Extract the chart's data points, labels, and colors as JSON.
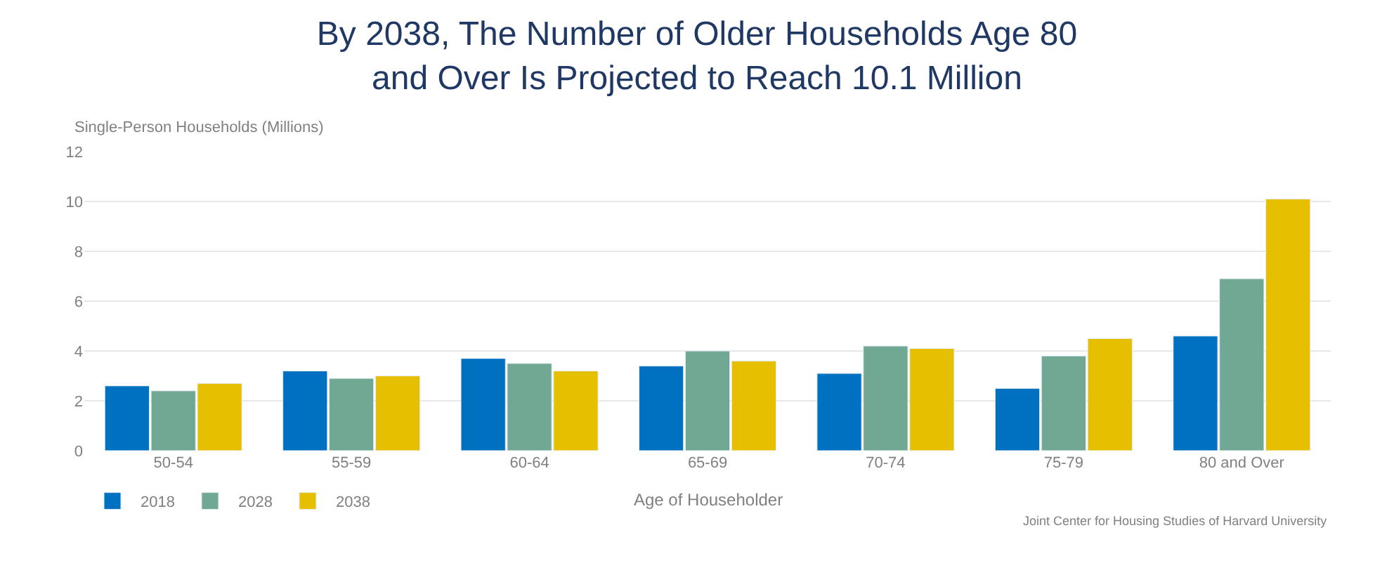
{
  "chart_data": {
    "type": "bar",
    "title": "By 2038, The Number of Older Households Age 80\nand Over Is Projected to Reach 10.1 Million",
    "ylabel": "Single-Person Households (Millions)",
    "xlabel": "Age of Householder",
    "categories": [
      "50-54",
      "55-59",
      "60-64",
      "65-69",
      "70-74",
      "75-79",
      "80 and Over"
    ],
    "series": [
      {
        "name": "2018",
        "color": "#0070c0",
        "values": [
          2.6,
          3.2,
          3.7,
          3.4,
          3.1,
          2.5,
          4.6
        ]
      },
      {
        "name": "2028",
        "color": "#70a894",
        "values": [
          2.4,
          2.9,
          3.5,
          4.0,
          4.2,
          3.8,
          6.9
        ]
      },
      {
        "name": "2038",
        "color": "#e6bf00",
        "values": [
          2.7,
          3.0,
          3.2,
          3.6,
          4.1,
          4.5,
          10.1
        ]
      }
    ],
    "ylim": [
      0,
      12
    ],
    "yticks": [
      0,
      2,
      4,
      6,
      8,
      10,
      12
    ],
    "grid": "y",
    "legend": "bottom left",
    "annotations": [
      "Joint Center for Housing Studies of Harvard University"
    ]
  }
}
